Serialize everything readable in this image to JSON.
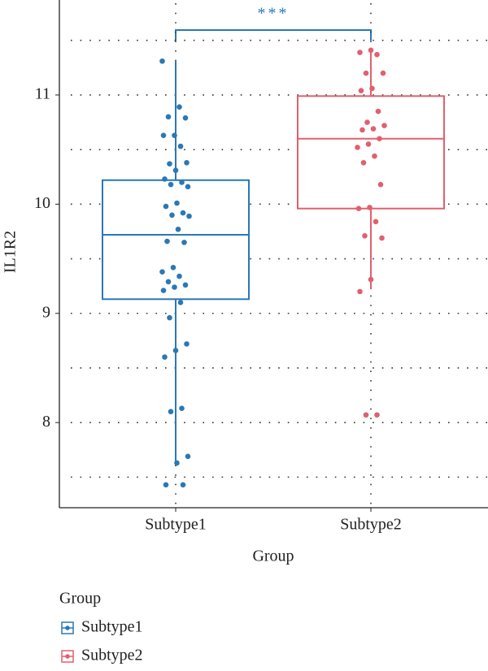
{
  "chart_data": {
    "type": "box",
    "y_label": "IL1R2",
    "x_label": "Group",
    "categories": [
      "Subtype1",
      "Subtype2"
    ],
    "ylim": [
      7.22,
      11.87
    ],
    "yticks": [
      8,
      9,
      10,
      11
    ],
    "minor_yticks": [
      7.5,
      8.5,
      9.5,
      10.5,
      11.5
    ],
    "grid": true,
    "annotation": "***",
    "legend_title": "Group",
    "series": [
      {
        "name": "Subtype1",
        "color": "#2a78b6",
        "stats": {
          "whisker_low": 7.64,
          "q1": 9.13,
          "median": 9.72,
          "q3": 10.22,
          "whisker_high": 11.31
        },
        "points": [
          11.31,
          10.89,
          10.8,
          10.79,
          10.63,
          10.63,
          10.53,
          10.37,
          10.38,
          10.31,
          10.23,
          10.2,
          10.18,
          10.16,
          10.01,
          9.98,
          9.92,
          9.9,
          9.89,
          9.77,
          9.66,
          9.65,
          9.42,
          9.38,
          9.34,
          9.29,
          9.26,
          9.24,
          9.21,
          9.1,
          8.96,
          8.72,
          8.66,
          8.6,
          8.13,
          8.1,
          7.69,
          7.63,
          7.43,
          7.43
        ]
      },
      {
        "name": "Subtype2",
        "color": "#e0606d",
        "stats": {
          "whisker_low": 9.22,
          "q1": 9.96,
          "median": 10.6,
          "q3": 10.99,
          "whisker_high": 11.42
        },
        "points": [
          11.41,
          11.39,
          11.37,
          11.2,
          11.2,
          11.06,
          11.04,
          10.85,
          10.75,
          10.72,
          10.69,
          10.68,
          10.6,
          10.55,
          10.52,
          10.44,
          10.38,
          10.18,
          9.97,
          9.96,
          9.84,
          9.71,
          9.69,
          9.31,
          9.2,
          8.07,
          8.07
        ]
      }
    ]
  }
}
